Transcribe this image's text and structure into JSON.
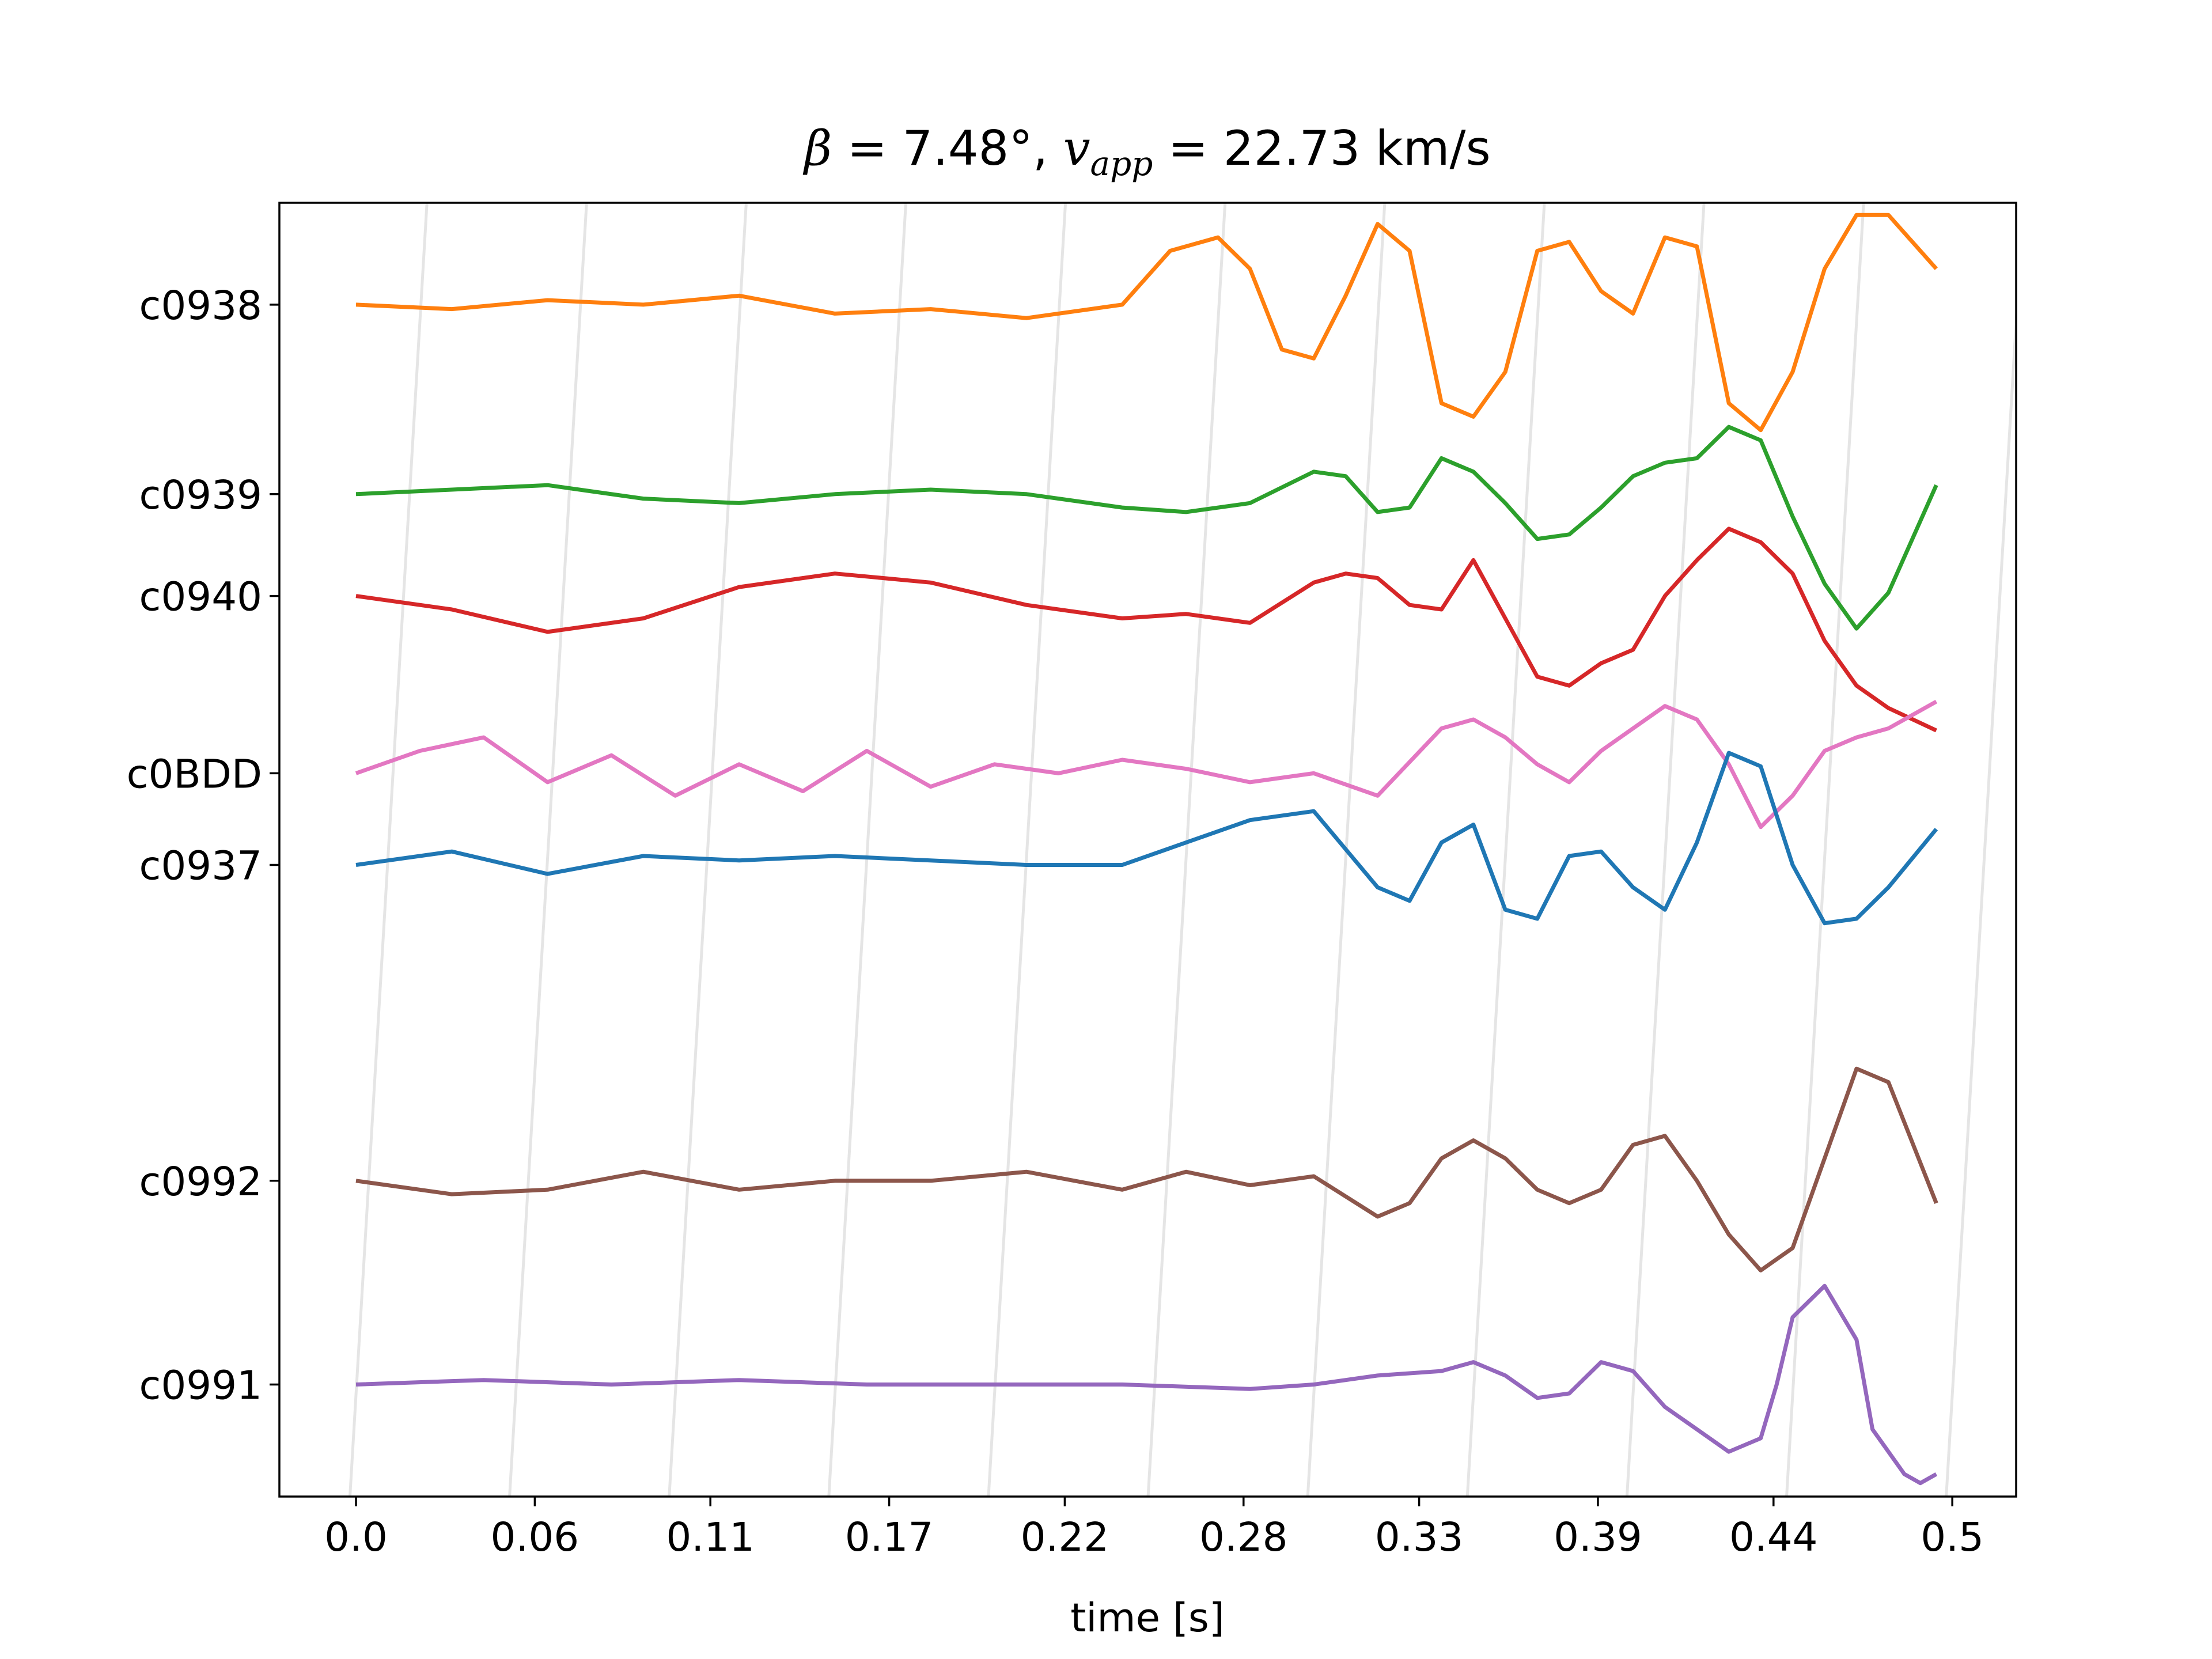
{
  "chart_data": {
    "type": "line",
    "title": {
      "beta_symbol": "β",
      "beta_value": " = 7.48°, ",
      "v_symbol": "v",
      "v_subscript": "app",
      "v_value": " = 22.73 km/s"
    },
    "xlabel": "time [s]",
    "x_tick_labels": [
      "0.0",
      "0.06",
      "0.11",
      "0.17",
      "0.22",
      "0.28",
      "0.33",
      "0.39",
      "0.44",
      "0.5"
    ],
    "x_tick_values": [
      0.0,
      0.056,
      0.111,
      0.167,
      0.222,
      0.278,
      0.333,
      0.389,
      0.444,
      0.5
    ],
    "xlim": [
      -0.024,
      0.52
    ],
    "trace_offset_range": [
      -0.5,
      5.85
    ],
    "apparent_velocity_moveout_lines": {
      "spacing_s": 0.05,
      "slope_s_per_offset_unit": 0.0038
    },
    "series": [
      {
        "name": "c0938",
        "offset": 5.35,
        "color": "#ff7f0e",
        "x": [
          0.0,
          0.03,
          0.06,
          0.09,
          0.12,
          0.15,
          0.18,
          0.21,
          0.24,
          0.255,
          0.27,
          0.28,
          0.29,
          0.3,
          0.31,
          0.32,
          0.33,
          0.34,
          0.35,
          0.36,
          0.37,
          0.38,
          0.39,
          0.4,
          0.41,
          0.42,
          0.43,
          0.44,
          0.45,
          0.46,
          0.47,
          0.48,
          0.495
        ],
        "y": [
          0.0,
          -0.01,
          0.01,
          0.0,
          0.02,
          -0.02,
          -0.01,
          -0.03,
          0.0,
          0.12,
          0.15,
          0.08,
          -0.1,
          -0.12,
          0.02,
          0.18,
          0.12,
          -0.22,
          -0.25,
          -0.15,
          0.12,
          0.14,
          0.03,
          -0.02,
          0.15,
          0.13,
          -0.22,
          -0.28,
          -0.15,
          0.08,
          0.2,
          0.2,
          0.08
        ]
      },
      {
        "name": "c0939",
        "offset": 4.42,
        "color": "#2ca02c",
        "x": [
          0.0,
          0.03,
          0.06,
          0.09,
          0.12,
          0.15,
          0.18,
          0.21,
          0.24,
          0.26,
          0.28,
          0.3,
          0.31,
          0.32,
          0.33,
          0.34,
          0.35,
          0.36,
          0.37,
          0.38,
          0.39,
          0.4,
          0.41,
          0.42,
          0.43,
          0.44,
          0.45,
          0.46,
          0.47,
          0.48,
          0.495
        ],
        "y": [
          0.0,
          0.01,
          0.02,
          -0.01,
          -0.02,
          0.0,
          0.01,
          0.0,
          -0.03,
          -0.04,
          -0.02,
          0.05,
          0.04,
          -0.04,
          -0.03,
          0.08,
          0.05,
          -0.02,
          -0.1,
          -0.09,
          -0.03,
          0.04,
          0.07,
          0.08,
          0.15,
          0.12,
          -0.05,
          -0.2,
          -0.3,
          -0.22,
          0.02
        ]
      },
      {
        "name": "c0940",
        "offset": 3.92,
        "color": "#d62728",
        "x": [
          0.0,
          0.03,
          0.06,
          0.09,
          0.12,
          0.15,
          0.18,
          0.21,
          0.24,
          0.26,
          0.28,
          0.3,
          0.31,
          0.32,
          0.33,
          0.34,
          0.35,
          0.36,
          0.37,
          0.38,
          0.39,
          0.4,
          0.41,
          0.42,
          0.43,
          0.44,
          0.45,
          0.46,
          0.47,
          0.48,
          0.495
        ],
        "y": [
          0.0,
          -0.03,
          -0.08,
          -0.05,
          0.02,
          0.05,
          0.03,
          -0.02,
          -0.05,
          -0.04,
          -0.06,
          0.03,
          0.05,
          0.04,
          -0.02,
          -0.03,
          0.08,
          -0.05,
          -0.18,
          -0.2,
          -0.15,
          -0.12,
          0.0,
          0.08,
          0.15,
          0.12,
          0.05,
          -0.1,
          -0.2,
          -0.25,
          -0.3
        ]
      },
      {
        "name": "c0BDD",
        "offset": 3.05,
        "color": "#e377c2",
        "x": [
          0.0,
          0.02,
          0.04,
          0.06,
          0.08,
          0.1,
          0.12,
          0.14,
          0.16,
          0.18,
          0.2,
          0.22,
          0.24,
          0.26,
          0.28,
          0.3,
          0.32,
          0.34,
          0.35,
          0.36,
          0.37,
          0.38,
          0.39,
          0.4,
          0.41,
          0.42,
          0.43,
          0.44,
          0.45,
          0.46,
          0.47,
          0.48,
          0.495
        ],
        "y": [
          0.0,
          0.05,
          0.08,
          -0.02,
          0.04,
          -0.05,
          0.02,
          -0.04,
          0.05,
          -0.03,
          0.02,
          0.0,
          0.03,
          0.01,
          -0.02,
          0.0,
          -0.05,
          0.1,
          0.12,
          0.08,
          0.02,
          -0.02,
          0.05,
          0.1,
          0.15,
          0.12,
          0.02,
          -0.12,
          -0.05,
          0.05,
          0.08,
          0.1,
          0.16
        ]
      },
      {
        "name": "c0937",
        "offset": 2.6,
        "color": "#1f77b4",
        "x": [
          0.0,
          0.03,
          0.06,
          0.09,
          0.12,
          0.15,
          0.18,
          0.21,
          0.24,
          0.26,
          0.28,
          0.3,
          0.32,
          0.33,
          0.34,
          0.35,
          0.36,
          0.37,
          0.38,
          0.39,
          0.4,
          0.41,
          0.42,
          0.43,
          0.44,
          0.45,
          0.46,
          0.47,
          0.48,
          0.495
        ],
        "y": [
          0.0,
          0.03,
          -0.02,
          0.02,
          0.01,
          0.02,
          0.01,
          0.0,
          0.0,
          0.05,
          0.1,
          0.12,
          -0.05,
          -0.08,
          0.05,
          0.09,
          -0.1,
          -0.12,
          0.02,
          0.03,
          -0.05,
          -0.1,
          0.05,
          0.25,
          0.22,
          0.0,
          -0.13,
          -0.12,
          -0.05,
          0.08
        ]
      },
      {
        "name": "c0992",
        "offset": 1.05,
        "color": "#8c564b",
        "x": [
          0.0,
          0.03,
          0.06,
          0.09,
          0.12,
          0.15,
          0.18,
          0.21,
          0.24,
          0.26,
          0.28,
          0.3,
          0.32,
          0.33,
          0.34,
          0.35,
          0.36,
          0.37,
          0.38,
          0.39,
          0.4,
          0.41,
          0.42,
          0.43,
          0.44,
          0.45,
          0.46,
          0.47,
          0.48,
          0.495
        ],
        "y": [
          0.0,
          -0.03,
          -0.02,
          0.02,
          -0.02,
          0.0,
          0.0,
          0.02,
          -0.02,
          0.02,
          -0.01,
          0.01,
          -0.08,
          -0.05,
          0.05,
          0.09,
          0.05,
          -0.02,
          -0.05,
          -0.02,
          0.08,
          0.1,
          0.0,
          -0.12,
          -0.2,
          -0.15,
          0.05,
          0.25,
          0.22,
          -0.05
        ]
      },
      {
        "name": "c0991",
        "offset": 0.05,
        "color": "#9467bd",
        "x": [
          0.0,
          0.04,
          0.08,
          0.12,
          0.16,
          0.2,
          0.24,
          0.28,
          0.3,
          0.32,
          0.34,
          0.35,
          0.36,
          0.37,
          0.38,
          0.39,
          0.4,
          0.41,
          0.42,
          0.43,
          0.44,
          0.445,
          0.45,
          0.46,
          0.47,
          0.475,
          0.48,
          0.485,
          0.49,
          0.495
        ],
        "y": [
          0.0,
          0.01,
          0.0,
          0.01,
          0.0,
          0.0,
          0.0,
          -0.01,
          0.0,
          0.02,
          0.03,
          0.05,
          0.02,
          -0.03,
          -0.02,
          0.05,
          0.03,
          -0.05,
          -0.1,
          -0.15,
          -0.12,
          0.0,
          0.15,
          0.22,
          0.1,
          -0.1,
          -0.15,
          -0.2,
          -0.22,
          -0.2
        ]
      }
    ]
  }
}
